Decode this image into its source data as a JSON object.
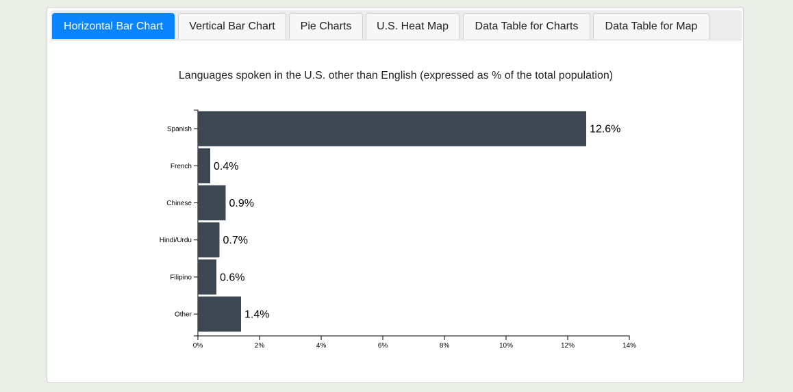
{
  "tabs": [
    {
      "label": "Horizontal Bar Chart",
      "active": true
    },
    {
      "label": "Vertical Bar Chart",
      "active": false
    },
    {
      "label": "Pie Charts",
      "active": false
    },
    {
      "label": "U.S. Heat Map",
      "active": false
    },
    {
      "label": "Data Table for Charts",
      "active": false
    },
    {
      "label": "Data Table for Map",
      "active": false
    }
  ],
  "colors": {
    "bar": "#3d4752",
    "active_tab": "#0a84ff"
  },
  "chart_data": {
    "type": "bar",
    "orientation": "horizontal",
    "title": "Languages spoken in the U.S. other than English (expressed as % of the total population)",
    "categories": [
      "Spanish",
      "French",
      "Chinese",
      "Hindi/Urdu",
      "Filipino",
      "Other"
    ],
    "values": [
      12.6,
      0.4,
      0.9,
      0.7,
      0.6,
      1.4
    ],
    "value_labels": [
      "12.6%",
      "0.4%",
      "0.9%",
      "0.7%",
      "0.6%",
      "1.4%"
    ],
    "xlim": [
      0,
      14
    ],
    "x_ticks": [
      0,
      2,
      4,
      6,
      8,
      10,
      12,
      14
    ],
    "x_tick_labels": [
      "0%",
      "2%",
      "4%",
      "6%",
      "8%",
      "10%",
      "12%",
      "14%"
    ],
    "xlabel": "",
    "ylabel": "",
    "grid": false
  }
}
